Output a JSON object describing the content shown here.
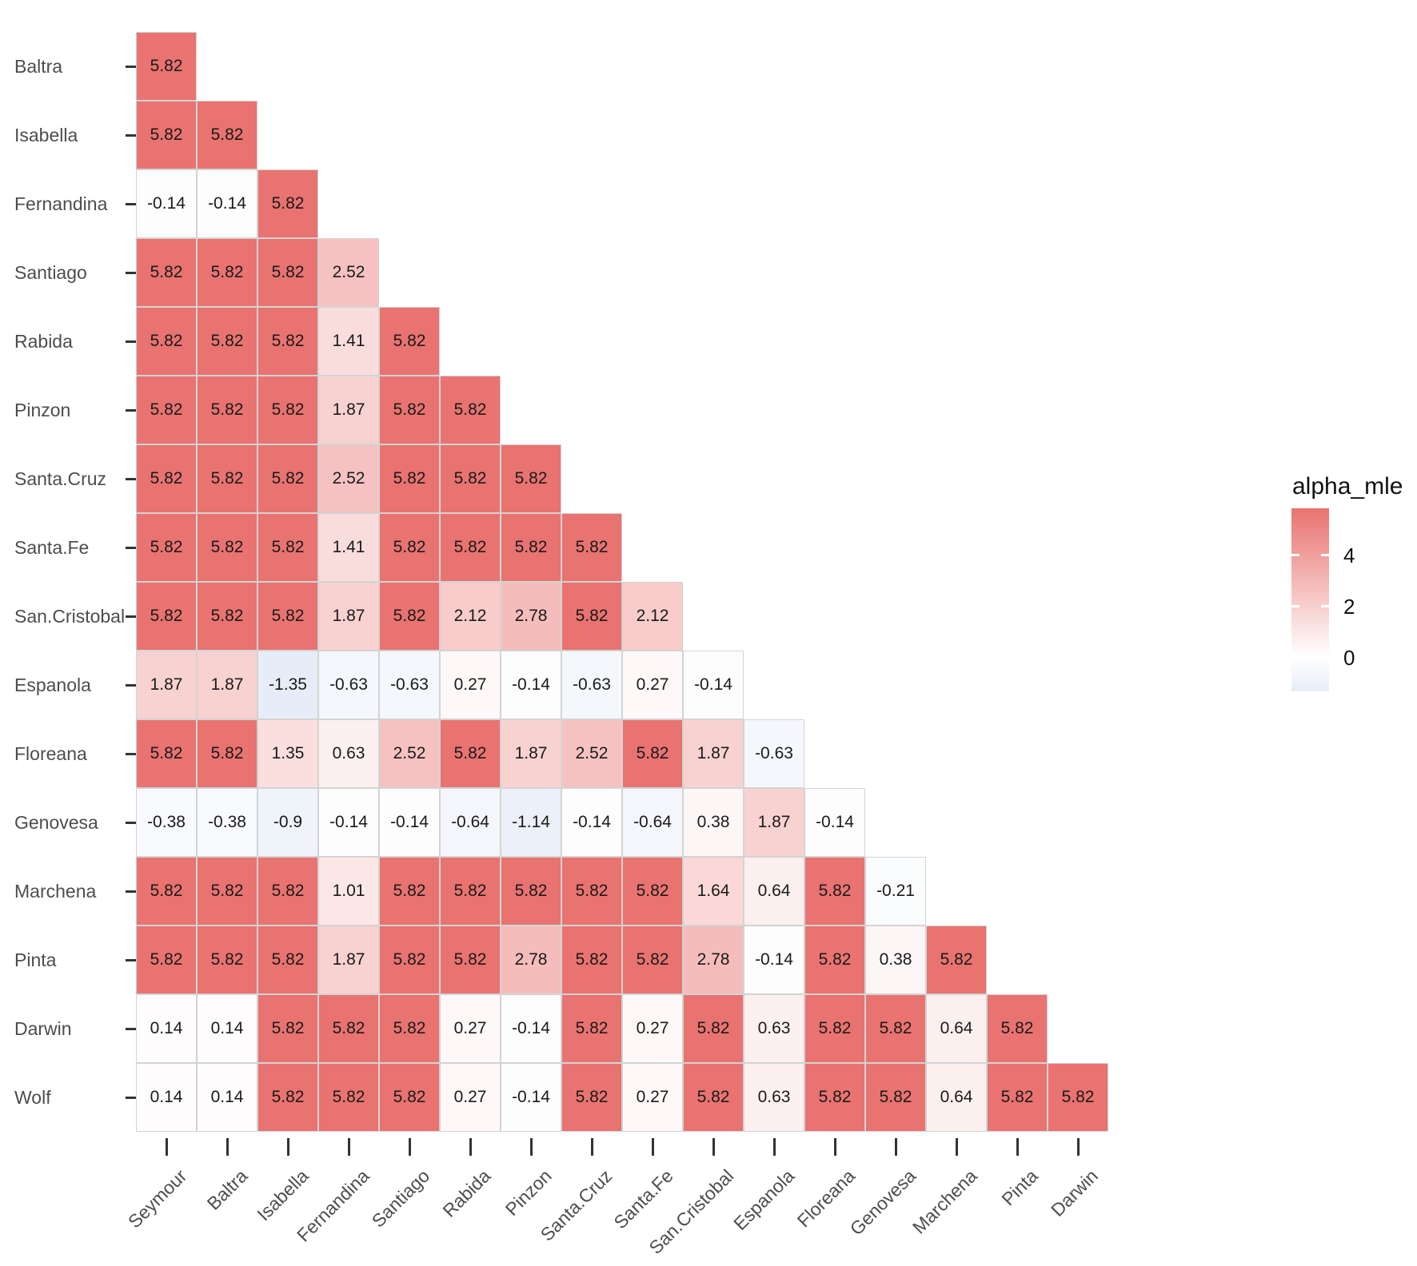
{
  "chart_data": {
    "type": "heatmap",
    "legend_title": "alpha_mle",
    "x_categories": [
      "Seymour",
      "Baltra",
      "Isabella",
      "Fernandina",
      "Santiago",
      "Rabida",
      "Pinzon",
      "Santa.Cruz",
      "Santa.Fe",
      "San.Cristobal",
      "Espanola",
      "Floreana",
      "Genovesa",
      "Marchena",
      "Pinta",
      "Darwin"
    ],
    "y_categories": [
      "Baltra",
      "Isabella",
      "Fernandina",
      "Santiago",
      "Rabida",
      "Pinzon",
      "Santa.Cruz",
      "Santa.Fe",
      "San.Cristobal",
      "Espanola",
      "Floreana",
      "Genovesa",
      "Marchena",
      "Pinta",
      "Darwin",
      "Wolf"
    ],
    "rows": [
      {
        "name": "Baltra",
        "values": [
          5.82
        ]
      },
      {
        "name": "Isabella",
        "values": [
          5.82,
          5.82
        ]
      },
      {
        "name": "Fernandina",
        "values": [
          -0.14,
          -0.14,
          5.82
        ]
      },
      {
        "name": "Santiago",
        "values": [
          5.82,
          5.82,
          5.82,
          2.52
        ]
      },
      {
        "name": "Rabida",
        "values": [
          5.82,
          5.82,
          5.82,
          1.41,
          5.82
        ]
      },
      {
        "name": "Pinzon",
        "values": [
          5.82,
          5.82,
          5.82,
          1.87,
          5.82,
          5.82
        ]
      },
      {
        "name": "Santa.Cruz",
        "values": [
          5.82,
          5.82,
          5.82,
          2.52,
          5.82,
          5.82,
          5.82
        ]
      },
      {
        "name": "Santa.Fe",
        "values": [
          5.82,
          5.82,
          5.82,
          1.41,
          5.82,
          5.82,
          5.82,
          5.82
        ]
      },
      {
        "name": "San.Cristobal",
        "values": [
          5.82,
          5.82,
          5.82,
          1.87,
          5.82,
          2.12,
          2.78,
          5.82,
          2.12
        ]
      },
      {
        "name": "Espanola",
        "values": [
          1.87,
          1.87,
          -1.35,
          -0.63,
          -0.63,
          0.27,
          -0.14,
          -0.63,
          0.27,
          -0.14
        ]
      },
      {
        "name": "Floreana",
        "values": [
          5.82,
          5.82,
          1.35,
          0.63,
          2.52,
          5.82,
          1.87,
          2.52,
          5.82,
          1.87,
          -0.63
        ]
      },
      {
        "name": "Genovesa",
        "values": [
          -0.38,
          -0.38,
          -0.9,
          -0.14,
          -0.14,
          -0.64,
          -1.14,
          -0.14,
          -0.64,
          0.38,
          1.87,
          -0.14
        ]
      },
      {
        "name": "Marchena",
        "values": [
          5.82,
          5.82,
          5.82,
          1.01,
          5.82,
          5.82,
          5.82,
          5.82,
          5.82,
          1.64,
          0.64,
          5.82,
          -0.21
        ]
      },
      {
        "name": "Pinta",
        "values": [
          5.82,
          5.82,
          5.82,
          1.87,
          5.82,
          5.82,
          2.78,
          5.82,
          5.82,
          2.78,
          -0.14,
          5.82,
          0.38,
          5.82
        ]
      },
      {
        "name": "Darwin",
        "values": [
          0.14,
          0.14,
          5.82,
          5.82,
          5.82,
          0.27,
          -0.14,
          5.82,
          0.27,
          5.82,
          0.63,
          5.82,
          5.82,
          0.64,
          5.82
        ]
      },
      {
        "name": "Wolf",
        "values": [
          0.14,
          0.14,
          5.82,
          5.82,
          5.82,
          0.27,
          -0.14,
          5.82,
          0.27,
          5.82,
          0.63,
          5.82,
          5.82,
          0.64,
          5.82,
          5.82
        ]
      }
    ],
    "legend": {
      "title": "alpha_mle",
      "ticks": [
        4,
        2,
        0
      ],
      "top_value": 5.82,
      "bottom_value": -1.35
    },
    "color_scale_limit": 5.82,
    "grid": false,
    "legend_position": "right"
  },
  "colors": {
    "positive_end": "#E87370",
    "negative_end": "#98B1E1",
    "midpoint": "#FFFFFF",
    "axis_text": "#4D4D4D",
    "value_text": "#1A1A1A",
    "tick_mark": "#333333"
  }
}
